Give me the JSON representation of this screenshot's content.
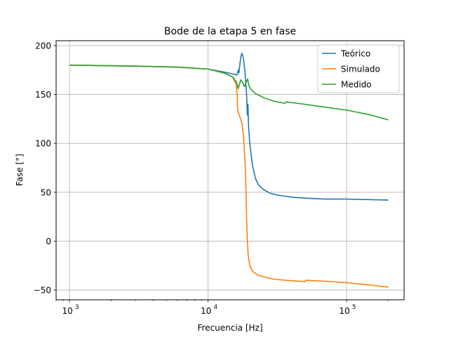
{
  "chart_data": {
    "type": "line",
    "title": "Bode de la etapa 5 en fase",
    "xlabel": "Frecuencia [Hz]",
    "ylabel": "Fase [°]",
    "xscale": "log",
    "xlim": [
      800,
      260000
    ],
    "ylim": [
      -60,
      205
    ],
    "grid": true,
    "legend_position": "top-right",
    "x_ticks": [
      {
        "value": 1000,
        "base": "10",
        "exp": "3"
      },
      {
        "value": 10000,
        "base": "10",
        "exp": "4"
      },
      {
        "value": 100000,
        "base": "10",
        "exp": "5"
      }
    ],
    "y_ticks": [
      {
        "value": 200,
        "label": "200"
      },
      {
        "value": 150,
        "label": "150"
      },
      {
        "value": 100,
        "label": "100"
      },
      {
        "value": 50,
        "label": "50"
      },
      {
        "value": 0,
        "label": "0"
      },
      {
        "value": -50,
        "label": "−50"
      }
    ],
    "series": [
      {
        "name": "Teórico",
        "color": "#1f77b4",
        "points": [
          [
            1000,
            180
          ],
          [
            3000,
            179
          ],
          [
            6000,
            178
          ],
          [
            10000,
            176
          ],
          [
            13000,
            173
          ],
          [
            15000,
            171
          ],
          [
            16200,
            170
          ],
          [
            16500,
            175
          ],
          [
            16700,
            172
          ],
          [
            17000,
            182
          ],
          [
            17300,
            190
          ],
          [
            17600,
            192
          ],
          [
            18000,
            187
          ],
          [
            18500,
            172
          ],
          [
            19000,
            148
          ],
          [
            19200,
            129
          ],
          [
            19400,
            140
          ],
          [
            19600,
            118
          ],
          [
            20000,
            100
          ],
          [
            20500,
            87
          ],
          [
            21000,
            76
          ],
          [
            22000,
            64
          ],
          [
            23000,
            58
          ],
          [
            25000,
            53
          ],
          [
            28000,
            49
          ],
          [
            32000,
            47
          ],
          [
            40000,
            45
          ],
          [
            50000,
            44
          ],
          [
            70000,
            43
          ],
          [
            100000,
            43
          ],
          [
            200000,
            42
          ]
        ]
      },
      {
        "name": "Simulado",
        "color": "#ff7f0e",
        "points": [
          [
            1000,
            180
          ],
          [
            3000,
            179
          ],
          [
            6000,
            178
          ],
          [
            10000,
            176
          ],
          [
            13000,
            172
          ],
          [
            15000,
            168
          ],
          [
            16000,
            160
          ],
          [
            16200,
            150
          ],
          [
            16300,
            137
          ],
          [
            16500,
            132
          ],
          [
            17000,
            127
          ],
          [
            17600,
            120
          ],
          [
            18000,
            108
          ],
          [
            18500,
            80
          ],
          [
            18800,
            50
          ],
          [
            19000,
            20
          ],
          [
            19200,
            0
          ],
          [
            19500,
            -15
          ],
          [
            20000,
            -25
          ],
          [
            21000,
            -31
          ],
          [
            23000,
            -35
          ],
          [
            26000,
            -37
          ],
          [
            30000,
            -39
          ],
          [
            40000,
            -40.5
          ],
          [
            50000,
            -41.5
          ],
          [
            50500,
            -40
          ],
          [
            70000,
            -41
          ],
          [
            100000,
            -42.5
          ],
          [
            150000,
            -45
          ],
          [
            200000,
            -47
          ]
        ]
      },
      {
        "name": "Medido",
        "color": "#2ca02c",
        "points": [
          [
            1000,
            180
          ],
          [
            3000,
            179
          ],
          [
            6000,
            178
          ],
          [
            10000,
            176
          ],
          [
            13000,
            172
          ],
          [
            15000,
            168
          ],
          [
            16000,
            163
          ],
          [
            16500,
            156
          ],
          [
            16800,
            160
          ],
          [
            17200,
            165
          ],
          [
            17800,
            162
          ],
          [
            18300,
            158
          ],
          [
            18800,
            162
          ],
          [
            19300,
            166
          ],
          [
            19700,
            159
          ],
          [
            20500,
            155
          ],
          [
            22000,
            151
          ],
          [
            25000,
            147
          ],
          [
            30000,
            143
          ],
          [
            36000,
            141
          ],
          [
            36500,
            142.5
          ],
          [
            50000,
            140
          ],
          [
            70000,
            137
          ],
          [
            100000,
            134
          ],
          [
            150000,
            129
          ],
          [
            200000,
            124
          ]
        ]
      }
    ]
  }
}
